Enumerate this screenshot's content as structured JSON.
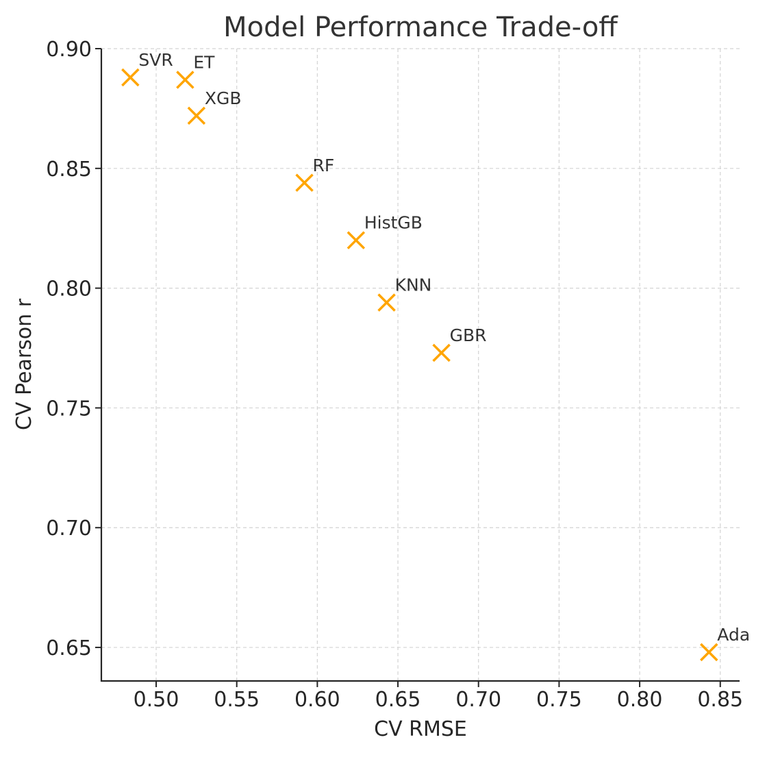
{
  "chart_data": {
    "type": "scatter",
    "title": "Model Performance Trade-off",
    "xlabel": "CV RMSE",
    "ylabel": "CV Pearson r",
    "xlim": [
      0.466,
      0.862
    ],
    "ylim": [
      0.636,
      0.9
    ],
    "xticks": [
      "0.50",
      "0.55",
      "0.60",
      "0.65",
      "0.70",
      "0.75",
      "0.80",
      "0.85"
    ],
    "yticks": [
      "0.65",
      "0.70",
      "0.75",
      "0.80",
      "0.85",
      "0.90"
    ],
    "grid": true,
    "marker": "x",
    "color": "#FFA500",
    "points": [
      {
        "label": "SVR",
        "x": 0.484,
        "y": 0.888
      },
      {
        "label": "ET",
        "x": 0.518,
        "y": 0.887
      },
      {
        "label": "XGB",
        "x": 0.525,
        "y": 0.872
      },
      {
        "label": "RF",
        "x": 0.592,
        "y": 0.844
      },
      {
        "label": "HistGB",
        "x": 0.624,
        "y": 0.82
      },
      {
        "label": "KNN",
        "x": 0.643,
        "y": 0.794
      },
      {
        "label": "GBR",
        "x": 0.677,
        "y": 0.773
      },
      {
        "label": "Ada",
        "x": 0.843,
        "y": 0.648
      }
    ]
  }
}
